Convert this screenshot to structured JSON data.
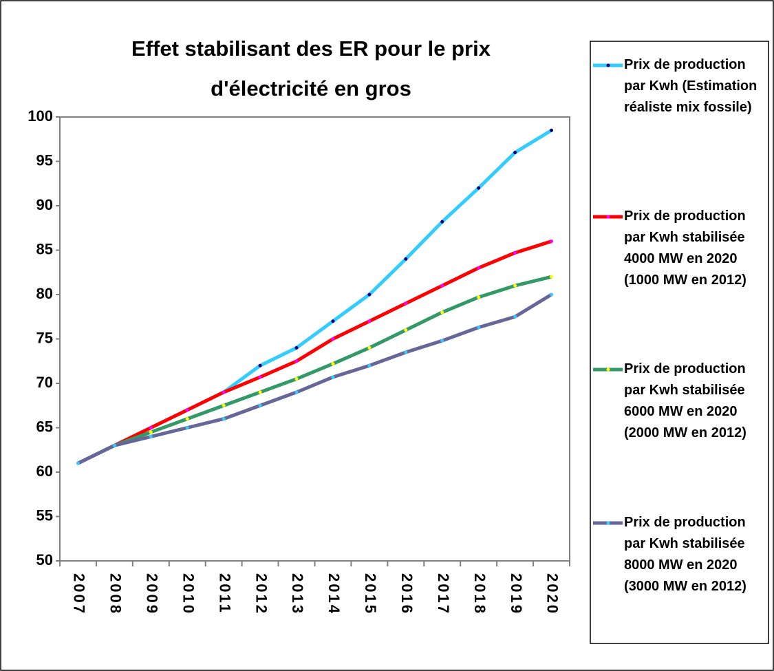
{
  "chart_data": {
    "type": "line",
    "title": "Effet stabilisant des ER pour le prix d'électricité en gros",
    "categories": [
      "2007",
      "2008",
      "2009",
      "2010",
      "2011",
      "2012",
      "2013",
      "2014",
      "2015",
      "2016",
      "2017",
      "2018",
      "2019",
      "2020"
    ],
    "series": [
      {
        "name": "Prix de production par Kwh (Estimation réaliste mix fossile)",
        "color": "#33ccff",
        "marker_color": "#000080",
        "values": [
          61,
          63,
          65,
          67,
          69,
          72,
          74,
          77,
          80,
          84,
          88.2,
          92,
          96,
          98.5
        ]
      },
      {
        "name": "Prix de production par Kwh stabilisée 4000 MW en 2020 (1000 MW en 2012)",
        "color": "#ff0000",
        "marker_color": "#ff00ff",
        "values": [
          61,
          63,
          65,
          67,
          69,
          70.7,
          72.5,
          75,
          77,
          79,
          81,
          83,
          84.7,
          86
        ]
      },
      {
        "name": "Prix de production par Kwh stabilisée 6000 MW en 2020 (2000 MW en 2012)",
        "color": "#339966",
        "marker_color": "#ffff00",
        "values": [
          61,
          63,
          64.5,
          66,
          67.5,
          69,
          70.5,
          72.2,
          74,
          76,
          78,
          79.7,
          81,
          82
        ]
      },
      {
        "name": "Prix de production par Kwh stabilisée 8000 MW en 2020 (3000 MW en 2012)",
        "color": "#666699",
        "marker_color": "#33ccff",
        "values": [
          61,
          63,
          64,
          65,
          66,
          67.5,
          69,
          70.7,
          72,
          73.5,
          74.8,
          76.3,
          77.5,
          80
        ]
      }
    ],
    "ylim": [
      50,
      100
    ],
    "yticks": [
      50,
      55,
      60,
      65,
      70,
      75,
      80,
      85,
      90,
      95,
      100
    ],
    "grid": false,
    "legend": "right"
  }
}
